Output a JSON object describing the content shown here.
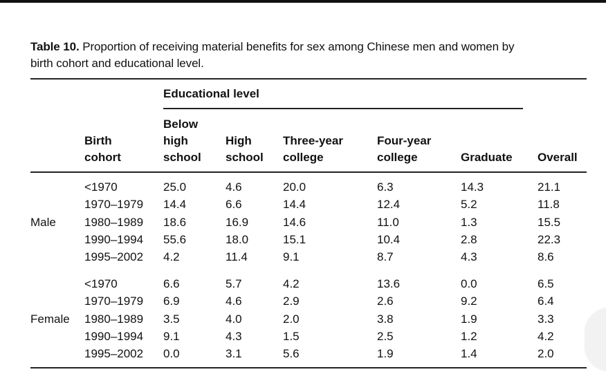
{
  "caption": {
    "label": "Table 10.",
    "text": "Proportion of receiving material benefits for sex among Chinese men and women by",
    "text2": "birth cohort and educational level."
  },
  "header": {
    "group": "Educational level",
    "birth": [
      "Birth",
      "cohort"
    ],
    "below": [
      "Below",
      "high",
      "school"
    ],
    "high": [
      "High",
      "school"
    ],
    "three": [
      "Three-year",
      "college"
    ],
    "four": [
      "Four-year",
      "college"
    ],
    "graduate": "Graduate",
    "overall": "Overall"
  },
  "groups": [
    {
      "sex": "Male",
      "rows": [
        [
          "<1970",
          "25.0",
          "4.6",
          "20.0",
          "6.3",
          "14.3",
          "21.1"
        ],
        [
          "1970–1979",
          "14.4",
          "6.6",
          "14.4",
          "12.4",
          "5.2",
          "11.8"
        ],
        [
          "1980–1989",
          "18.6",
          "16.9",
          "14.6",
          "11.0",
          "1.3",
          "15.5"
        ],
        [
          "1990–1994",
          "55.6",
          "18.0",
          "15.1",
          "10.4",
          "2.8",
          "22.3"
        ],
        [
          "1995–2002",
          "4.2",
          "11.4",
          "9.1",
          "8.7",
          "4.3",
          "8.6"
        ]
      ]
    },
    {
      "sex": "Female",
      "rows": [
        [
          "<1970",
          "6.6",
          "5.7",
          "4.2",
          "13.6",
          "0.0",
          "6.5"
        ],
        [
          "1970–1979",
          "6.9",
          "4.6",
          "2.9",
          "2.6",
          "9.2",
          "6.4"
        ],
        [
          "1980–1989",
          "3.5",
          "4.0",
          "2.0",
          "3.8",
          "1.9",
          "3.3"
        ],
        [
          "1990–1994",
          "9.1",
          "4.3",
          "1.5",
          "2.5",
          "1.2",
          "4.2"
        ],
        [
          "1995–2002",
          "0.0",
          "3.1",
          "5.6",
          "1.9",
          "1.4",
          "2.0"
        ]
      ]
    }
  ]
}
